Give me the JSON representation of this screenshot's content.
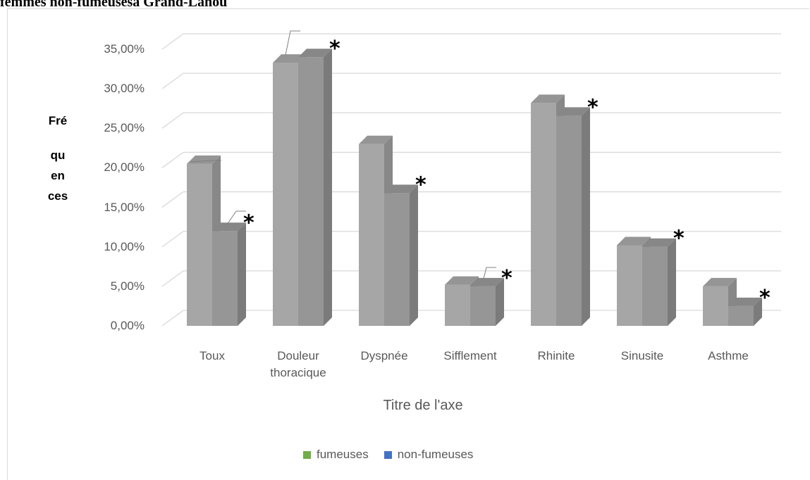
{
  "page": {
    "title": "femmes non-fumeusesà Grand-Lahou"
  },
  "chart_data": {
    "type": "bar",
    "title": "",
    "ylabel": [
      "Fré",
      "qu",
      "en",
      "ces"
    ],
    "xlabel": "Titre de l'axe",
    "categories": [
      {
        "lines": [
          "Toux"
        ]
      },
      {
        "lines": [
          "Douleur",
          "thoracique"
        ]
      },
      {
        "lines": [
          "Dyspnée"
        ]
      },
      {
        "lines": [
          "Sifflement"
        ]
      },
      {
        "lines": [
          "Rhinite"
        ]
      },
      {
        "lines": [
          "Sinusite"
        ]
      },
      {
        "lines": [
          "Asthme"
        ]
      }
    ],
    "series": [
      {
        "name": "fumeuses",
        "legend_color": "#70ad47",
        "values": [
          0.205,
          0.333,
          0.23,
          0.052,
          0.282,
          0.102,
          0.05
        ]
      },
      {
        "name": "non-fumeuses",
        "legend_color": "#4472c4",
        "values": [
          0.12,
          0.34,
          0.168,
          0.05,
          0.266,
          0.1,
          0.025
        ]
      }
    ],
    "yticks": [
      "0,00%",
      "5,00%",
      "10,00%",
      "15,00%",
      "20,00%",
      "25,00%",
      "30,00%",
      "35,00%"
    ],
    "ylim": [
      0,
      0.35
    ],
    "significance_marks": [
      "*",
      "*",
      "*",
      "*",
      "*",
      "*",
      "*"
    ],
    "bar_colors": {
      "fumeuses": "#a6a6a6",
      "non-fumeuses": "#969696"
    },
    "grid": true,
    "legend_position": "bottom"
  }
}
